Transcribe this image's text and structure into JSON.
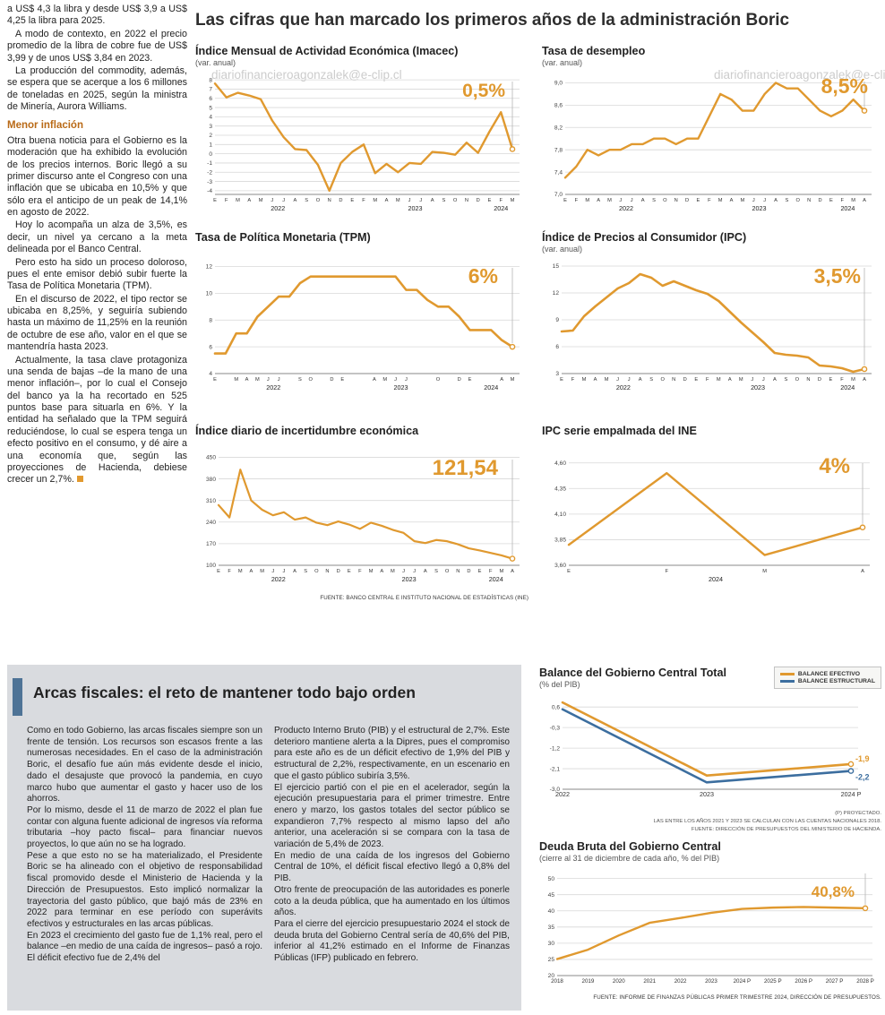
{
  "watermark": "diariofinancieroagonzalek@e-clip.cl",
  "watermark_alt": "ero#agonzalek@e-clip.cl",
  "headline": "Las cifras que han marcado los primeros años de la administración Boric",
  "left_article": {
    "p1": "a US$ 4,3 la libra y desde US$ 3,9 a US$ 4,25 la libra para 2025.",
    "p2": "A modo de contexto, en 2022 el precio promedio de la libra de cobre fue de US$ 3,99 y de unos US$ 3,84 en 2023.",
    "p3": "La producción del commodity, además, se espera que se acerque a los 6 millones de toneladas en 2025, según la ministra de Minería, Aurora Williams.",
    "heading": "Menor inflación",
    "p4": "Otra buena noticia para el Gobierno es la moderación que ha exhibido la evolución de los precios internos. Boric llegó a su primer discurso ante el Congreso con una inflación que se ubicaba en 10,5% y que sólo era el anticipo de un peak de 14,1% en agosto de 2022.",
    "p5": "Hoy lo acompaña un alza de 3,5%, es decir, un nivel ya cercano a la meta delineada por el Banco Central.",
    "p6": "Pero esto ha sido un proceso doloroso, pues el ente emisor debió subir fuerte la Tasa de Política Monetaria (TPM).",
    "p7": "En el discurso de 2022, el tipo rector se ubicaba en 8,25%, y seguiría subiendo hasta un máximo de 11,25% en la reunión de octubre de ese año, valor en el que se mantendría hasta 2023.",
    "p8": "Actualmente, la tasa clave protagoniza una senda de bajas –de la mano de una menor inflación–, por lo cual el Consejo del banco ya la ha recortado en 525 puntos base para situarla en 6%. Y la entidad ha señalado que la TPM seguirá reduciéndose, lo cual se espera tenga un efecto positivo en el consumo, y dé aire a una economía que, según las proyecciones de Hacienda, debiese crecer un 2,7%."
  },
  "fiscal": {
    "title": "Arcas fiscales: el reto de mantener todo bajo orden",
    "col1": {
      "p1": "Como en todo Gobierno, las arcas fiscales siempre son un frente de tensión. Los recursos son escasos frente a las numerosas necesidades. En el caso de la administración Boric, el desafío fue aún más evidente desde el inicio, dado el desajuste que provocó la pandemia, en cuyo marco hubo que aumentar el gasto y hacer uso de los ahorros.",
      "p2": "Por lo mismo, desde el 11 de marzo de 2022 el plan fue contar con alguna fuente adicional de ingresos vía reforma tributaria –hoy pacto fiscal– para financiar nuevos proyectos, lo que aún no se ha logrado.",
      "p3": "Pese a que esto no se ha materializado, el Presidente Boric se ha alineado con el objetivo de responsabilidad fiscal promovido desde el Ministerio de Hacienda y la Dirección de Presupuestos. Esto implicó normalizar la trayectoria del gasto público, que bajó más de 23% en 2022 para terminar en ese período con superávits efectivos y estructurales en las arcas públicas.",
      "p4": "En 2023 el crecimiento del gasto fue de 1,1% real, pero el balance –en medio de una caída de ingresos– pasó a rojo. El déficit efectivo fue de 2,4% del"
    },
    "col2": {
      "p1": "Producto Interno Bruto (PIB) y el estructural de 2,7%. Este deterioro mantiene alerta a la Dipres, pues el compromiso para este año es de un déficit efectivo de 1,9% del PIB y estructural de 2,2%, respectivamente, en un escenario en que el gasto público subiría 3,5%.",
      "p2": "El ejercicio partió con el pie en el acelerador, según la ejecución presupuestaria para el primer trimestre. Entre enero y marzo, los gastos totales del sector público se expandieron 7,7% respecto al mismo lapso del año anterior, una aceleración si se compara con la tasa de variación de 5,4% de 2023.",
      "p3": "En medio de una caída de los ingresos del Gobierno Central de 10%, el déficit fiscal efectivo llegó a 0,8% del PIB.",
      "p4": "Otro frente de preocupación de las autoridades es ponerle coto a la deuda pública, que ha aumentado en los últimos años.",
      "p5": "Para el cierre del ejercicio presupuestario 2024 el stock de deuda bruta del Gobierno Central sería de 40,6% del PIB, inferior al 41,2% estimado en el Informe de Finanzas Públicas (IFP) publicado en febrero."
    }
  },
  "chart_data": [
    {
      "id": "imacec",
      "type": "line",
      "title": "Índice Mensual de Actividad Económica (Imacec)",
      "subtitle": "(var. anual)",
      "end_label": "0,5%",
      "color": "#e0992f",
      "ylim": [
        -4.4,
        8.4
      ],
      "y_ticks": [
        8,
        7,
        6,
        5,
        4,
        3,
        2,
        1,
        0,
        -1,
        -2,
        -3,
        -4
      ],
      "y_labels": [
        "8",
        "7",
        "6",
        "5",
        "4",
        "3",
        "2",
        "1",
        "0",
        "-1",
        "-2",
        "-3",
        "-4"
      ],
      "x_months": [
        "E",
        "F",
        "M",
        "A",
        "M",
        "J",
        "J",
        "A",
        "S",
        "O",
        "N",
        "D",
        "E",
        "F",
        "M",
        "A",
        "M",
        "J",
        "J",
        "A",
        "S",
        "O",
        "N",
        "D",
        "E",
        "F",
        "M"
      ],
      "years": [
        {
          "label": "2022",
          "from": 0,
          "to": 11
        },
        {
          "label": "2023",
          "from": 12,
          "to": 23
        },
        {
          "label": "2024",
          "from": 24,
          "to": 26
        }
      ],
      "values": [
        7.6,
        6.1,
        6.6,
        6.3,
        5.9,
        3.6,
        1.8,
        0.5,
        0.4,
        -1.2,
        -4.0,
        -1.0,
        0.2,
        1.0,
        -2.1,
        -1.1,
        -2.0,
        -1.0,
        -1.1,
        0.2,
        0.1,
        -0.1,
        1.2,
        0.1,
        2.4,
        4.5,
        0.5
      ]
    },
    {
      "id": "desempleo",
      "type": "line",
      "title": "Tasa de desempleo",
      "subtitle": "(var. anual)",
      "end_label": "8,5%",
      "color": "#e0992f",
      "ylim": [
        7.0,
        9.12
      ],
      "y_ticks": [
        9.0,
        8.6,
        8.2,
        7.8,
        7.4,
        7.0
      ],
      "y_labels": [
        "9,0",
        "8,6",
        "8,2",
        "7,8",
        "7,4",
        "7,0"
      ],
      "x_months": [
        "E",
        "F",
        "M",
        "A",
        "M",
        "J",
        "J",
        "A",
        "S",
        "O",
        "N",
        "D",
        "E",
        "F",
        "M",
        "A",
        "M",
        "J",
        "J",
        "A",
        "S",
        "O",
        "N",
        "D",
        "E",
        "F",
        "M",
        "A"
      ],
      "years": [
        {
          "label": "2022",
          "from": 0,
          "to": 11
        },
        {
          "label": "2023",
          "from": 12,
          "to": 23
        },
        {
          "label": "2024",
          "from": 24,
          "to": 27
        }
      ],
      "values": [
        7.3,
        7.5,
        7.8,
        7.7,
        7.8,
        7.8,
        7.9,
        7.9,
        8.0,
        8.0,
        7.9,
        8.0,
        8.0,
        8.4,
        8.8,
        8.7,
        8.5,
        8.5,
        8.8,
        9.0,
        8.9,
        8.9,
        8.7,
        8.5,
        8.4,
        8.5,
        8.7,
        8.5
      ]
    },
    {
      "id": "tpm",
      "type": "line",
      "title": "Tasa de Política Monetaria (TPM)",
      "subtitle": "",
      "end_label": "6%",
      "color": "#e0992f",
      "ylim": [
        4,
        12.3
      ],
      "y_ticks": [
        12,
        10,
        8,
        6,
        4
      ],
      "y_labels": [
        "12",
        "10",
        "8",
        "6",
        "4"
      ],
      "x_months": [
        "E",
        "",
        "M",
        "A",
        "M",
        "J",
        "J",
        "",
        "S",
        "O",
        "",
        "D",
        "E",
        "",
        "",
        "A",
        "M",
        "J",
        "J",
        "",
        "",
        "O",
        "",
        "D",
        "E",
        "",
        "",
        "A",
        "M"
      ],
      "years": [
        {
          "label": "2022",
          "from": 0,
          "to": 11
        },
        {
          "label": "2023",
          "from": 12,
          "to": 23
        },
        {
          "label": "2024",
          "from": 24,
          "to": 28
        }
      ],
      "values": [
        5.5,
        5.5,
        7.0,
        7.0,
        8.25,
        9.0,
        9.75,
        9.75,
        10.75,
        11.25,
        11.25,
        11.25,
        11.25,
        11.25,
        11.25,
        11.25,
        11.25,
        11.25,
        10.25,
        10.25,
        9.5,
        9.0,
        9.0,
        8.25,
        7.25,
        7.25,
        7.25,
        6.5,
        6.0
      ]
    },
    {
      "id": "ipc",
      "type": "line",
      "title": "Índice de Precios al Consumidor (IPC)",
      "subtitle": "(var. anual)",
      "end_label": "3,5%",
      "color": "#e0992f",
      "ylim": [
        3,
        15.4
      ],
      "y_ticks": [
        15,
        12,
        9,
        6,
        3
      ],
      "y_labels": [
        "15",
        "12",
        "9",
        "6",
        "3"
      ],
      "x_months": [
        "E",
        "F",
        "M",
        "A",
        "M",
        "J",
        "J",
        "A",
        "S",
        "O",
        "N",
        "D",
        "E",
        "F",
        "M",
        "A",
        "M",
        "J",
        "J",
        "A",
        "S",
        "O",
        "N",
        "D",
        "E",
        "F",
        "M",
        "A"
      ],
      "years": [
        {
          "label": "2022",
          "from": 0,
          "to": 11
        },
        {
          "label": "2023",
          "from": 12,
          "to": 23
        },
        {
          "label": "2024",
          "from": 24,
          "to": 27
        }
      ],
      "values": [
        7.7,
        7.8,
        9.4,
        10.5,
        11.5,
        12.5,
        13.1,
        14.1,
        13.7,
        12.8,
        13.3,
        12.8,
        12.3,
        11.9,
        11.1,
        9.9,
        8.7,
        7.6,
        6.5,
        5.3,
        5.1,
        5.0,
        4.8,
        3.9,
        3.8,
        3.6,
        3.2,
        3.5
      ]
    },
    {
      "id": "incertidumbre",
      "type": "line",
      "title": "Índice diario de incertidumbre económica",
      "subtitle": "",
      "end_label": "121,54",
      "color": "#e0992f",
      "ylim": [
        100,
        460
      ],
      "y_ticks": [
        450,
        380,
        310,
        240,
        170,
        100
      ],
      "y_labels": [
        "450",
        "380",
        "310",
        "240",
        "170",
        "100"
      ],
      "x_months": [
        "E",
        "F",
        "M",
        "A",
        "M",
        "J",
        "J",
        "A",
        "S",
        "O",
        "N",
        "D",
        "E",
        "F",
        "M",
        "A",
        "M",
        "J",
        "J",
        "A",
        "S",
        "O",
        "N",
        "D",
        "E",
        "F",
        "M",
        "A"
      ],
      "years": [
        {
          "label": "2022",
          "from": 0,
          "to": 11
        },
        {
          "label": "2023",
          "from": 12,
          "to": 23
        },
        {
          "label": "2024",
          "from": 24,
          "to": 27
        }
      ],
      "values": [
        295,
        255,
        410,
        310,
        280,
        262,
        272,
        248,
        255,
        238,
        230,
        242,
        232,
        218,
        238,
        228,
        215,
        205,
        178,
        172,
        182,
        178,
        168,
        155,
        148,
        140,
        132,
        121.54
      ],
      "fuente": "FUENTE: BANCO CENTRAL E INSTITUTO NACIONAL DE ESTADÍSTICAS (INE)"
    },
    {
      "id": "ipc_empalmada",
      "type": "line",
      "title": "IPC serie empalmada del INE",
      "subtitle": "",
      "end_label": "4%",
      "color": "#e0992f",
      "ylim": [
        3.6,
        4.65
      ],
      "y_ticks": [
        4.6,
        4.35,
        4.1,
        3.85,
        3.6
      ],
      "y_labels": [
        "4,60",
        "4,35",
        "4,10",
        "3,85",
        "3,60"
      ],
      "x_months": [
        "E",
        "F",
        "M",
        "A"
      ],
      "years": [
        {
          "label": "2024",
          "from": 0,
          "to": 3
        }
      ],
      "values": [
        3.8,
        4.5,
        3.7,
        3.97
      ]
    },
    {
      "id": "balance_gobierno",
      "type": "line",
      "title": "Balance del Gobierno Central Total",
      "subtitle": "(% del PIB)",
      "ylim": [
        -3.0,
        1.0
      ],
      "y_ticks": [
        0.6,
        -0.3,
        -1.2,
        -2.1,
        -3.0
      ],
      "y_labels": [
        "0,6",
        "-0,3",
        "-1,2",
        "-2,1",
        "-3,0"
      ],
      "x_cats": [
        "2022",
        "2023",
        "2024 P"
      ],
      "series": [
        {
          "name": "BALANCE EFECTIVO",
          "color": "#e0992f",
          "values": [
            0.8,
            -2.4,
            -1.9
          ],
          "end_label": "-1,9"
        },
        {
          "name": "BALANCE ESTRUCTURAL",
          "color": "#3c6e9f",
          "values": [
            0.5,
            -2.7,
            -2.2
          ],
          "end_label": "-2,2"
        }
      ],
      "notes": [
        "(P) PROYECTADO.",
        "LAS ENTRE LOS AÑOS 2021 Y 2023 SE CALCULAN CON LAS CUENTAS NACIONALES 2018.",
        "FUENTE: DIRECCIÓN DE PRESUPUESTOS DEL MINISTERIO DE HACIENDA."
      ]
    },
    {
      "id": "deuda_bruta",
      "type": "line",
      "title": "Deuda Bruta del Gobierno Central",
      "subtitle": "(cierre al 31 de diciembre de cada año, % del PIB)",
      "end_label": "40,8%",
      "color": "#e0992f",
      "ylim": [
        20,
        51
      ],
      "y_ticks": [
        50,
        45,
        40,
        35,
        30,
        25,
        20
      ],
      "y_labels": [
        "50",
        "45",
        "40",
        "35",
        "30",
        "25",
        "20"
      ],
      "x_cats": [
        "2018",
        "2019",
        "2020",
        "2021",
        "2022",
        "2023",
        "2024 P",
        "2025 P",
        "2026 P",
        "2027 P",
        "2028 P"
      ],
      "values": [
        25.1,
        28.0,
        32.4,
        36.3,
        37.8,
        39.4,
        40.6,
        41.0,
        41.2,
        41.0,
        40.8
      ],
      "fuente": "FUENTE: INFORME DE FINANZAS PÚBLICAS PRIMER TRIMESTRE 2024, DIRECCIÓN DE PRESUPUESTOS."
    }
  ]
}
